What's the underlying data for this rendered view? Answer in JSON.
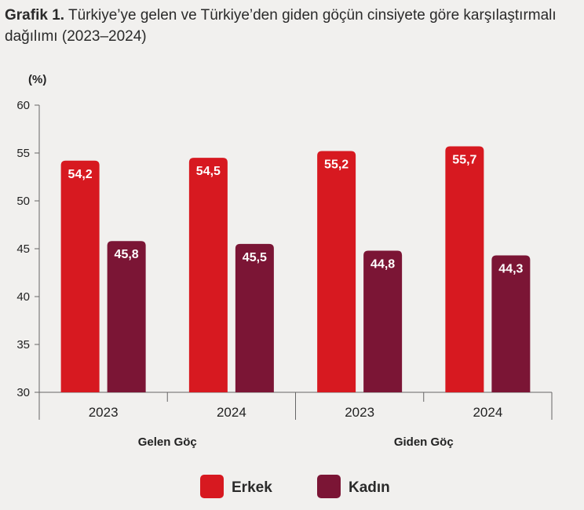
{
  "title": {
    "prefix": "Grafik 1.",
    "text": "Türkiye’ye gelen ve Türkiye’den giden göçün cinsiyete göre karşılaştırmalı dağılımı (2023–2024)"
  },
  "chart_data": {
    "type": "bar",
    "ylabel": "(%)",
    "ylim": [
      30,
      60
    ],
    "yticks": [
      30,
      35,
      40,
      45,
      50,
      55,
      60
    ],
    "groups": [
      {
        "label": "Gelen Göç",
        "categories": [
          "2023",
          "2024"
        ]
      },
      {
        "label": "Giden Göç",
        "categories": [
          "2023",
          "2024"
        ]
      }
    ],
    "categories": [
      "2023",
      "2024",
      "2023",
      "2024"
    ],
    "series": [
      {
        "name": "Erkek",
        "color": "#d71920",
        "values": [
          54.2,
          54.5,
          55.2,
          55.7
        ],
        "labels": [
          "54,2",
          "54,5",
          "55,2",
          "55,7"
        ]
      },
      {
        "name": "Kadın",
        "color": "#7b1535",
        "values": [
          45.8,
          45.5,
          44.8,
          44.3
        ],
        "labels": [
          "45,8",
          "45,5",
          "44,8",
          "44,3"
        ]
      }
    ],
    "grid": false,
    "legend_position": "bottom"
  }
}
